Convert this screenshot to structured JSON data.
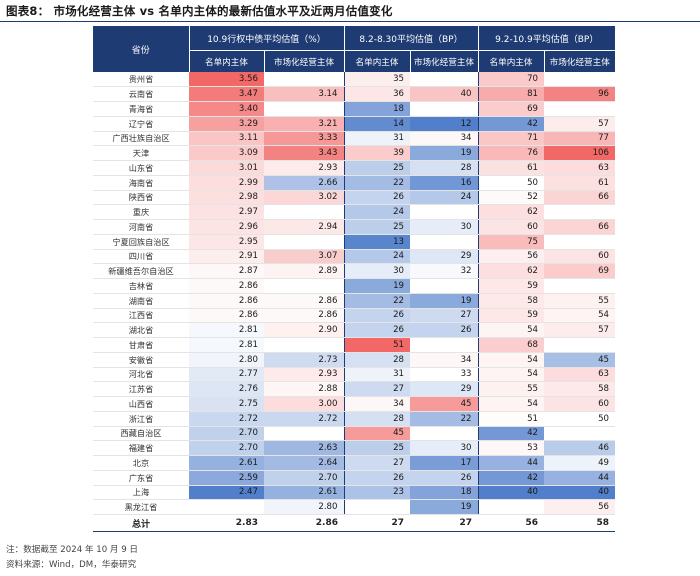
{
  "title": "图表8：  市场化经营主体 vs 名单内主体的最新估值水平及近两月估值变化",
  "headers": {
    "province": "省份",
    "group1": "10.9行权中债平均估值（%）",
    "group2": "8.2-8.30平均估值（BP）",
    "group3": "9.2-10.9平均估值（BP）",
    "sub_a": "名单内主体",
    "sub_b": "市场化经营主体"
  },
  "rows": [
    {
      "p": "贵州省",
      "y_in": "3.56",
      "y_mk": "",
      "a_in": "35",
      "a_mk": "",
      "b_in": "70",
      "b_mk": ""
    },
    {
      "p": "云南省",
      "y_in": "3.47",
      "y_mk": "3.14",
      "a_in": "36",
      "a_mk": "40",
      "b_in": "81",
      "b_mk": "96"
    },
    {
      "p": "青海省",
      "y_in": "3.40",
      "y_mk": "",
      "a_in": "18",
      "a_mk": "",
      "b_in": "69",
      "b_mk": ""
    },
    {
      "p": "辽宁省",
      "y_in": "3.29",
      "y_mk": "3.21",
      "a_in": "14",
      "a_mk": "12",
      "b_in": "42",
      "b_mk": "57"
    },
    {
      "p": "广西壮族自治区",
      "y_in": "3.11",
      "y_mk": "3.33",
      "a_in": "31",
      "a_mk": "34",
      "b_in": "71",
      "b_mk": "77"
    },
    {
      "p": "天津",
      "y_in": "3.09",
      "y_mk": "3.43",
      "a_in": "39",
      "a_mk": "19",
      "b_in": "76",
      "b_mk": "106"
    },
    {
      "p": "山东省",
      "y_in": "3.01",
      "y_mk": "2.93",
      "a_in": "25",
      "a_mk": "28",
      "b_in": "61",
      "b_mk": "63"
    },
    {
      "p": "海南省",
      "y_in": "2.99",
      "y_mk": "2.66",
      "a_in": "22",
      "a_mk": "16",
      "b_in": "50",
      "b_mk": "61"
    },
    {
      "p": "陕西省",
      "y_in": "2.98",
      "y_mk": "3.02",
      "a_in": "26",
      "a_mk": "24",
      "b_in": "52",
      "b_mk": "66"
    },
    {
      "p": "重庆",
      "y_in": "2.97",
      "y_mk": "",
      "a_in": "24",
      "a_mk": "",
      "b_in": "62",
      "b_mk": ""
    },
    {
      "p": "河南省",
      "y_in": "2.96",
      "y_mk": "2.94",
      "a_in": "25",
      "a_mk": "30",
      "b_in": "60",
      "b_mk": "66"
    },
    {
      "p": "宁夏回族自治区",
      "y_in": "2.95",
      "y_mk": "",
      "a_in": "13",
      "a_mk": "",
      "b_in": "75",
      "b_mk": ""
    },
    {
      "p": "四川省",
      "y_in": "2.91",
      "y_mk": "3.07",
      "a_in": "24",
      "a_mk": "29",
      "b_in": "56",
      "b_mk": "60"
    },
    {
      "p": "新疆维吾尔自治区",
      "y_in": "2.87",
      "y_mk": "2.89",
      "a_in": "30",
      "a_mk": "32",
      "b_in": "62",
      "b_mk": "69"
    },
    {
      "p": "吉林省",
      "y_in": "2.86",
      "y_mk": "",
      "a_in": "19",
      "a_mk": "",
      "b_in": "59",
      "b_mk": ""
    },
    {
      "p": "湖南省",
      "y_in": "2.86",
      "y_mk": "2.86",
      "a_in": "22",
      "a_mk": "19",
      "b_in": "58",
      "b_mk": "55"
    },
    {
      "p": "江西省",
      "y_in": "2.86",
      "y_mk": "2.86",
      "a_in": "26",
      "a_mk": "27",
      "b_in": "59",
      "b_mk": "54"
    },
    {
      "p": "湖北省",
      "y_in": "2.81",
      "y_mk": "2.90",
      "a_in": "26",
      "a_mk": "26",
      "b_in": "54",
      "b_mk": "57"
    },
    {
      "p": "甘肃省",
      "y_in": "2.81",
      "y_mk": "",
      "a_in": "51",
      "a_mk": "",
      "b_in": "68",
      "b_mk": ""
    },
    {
      "p": "安徽省",
      "y_in": "2.80",
      "y_mk": "2.73",
      "a_in": "28",
      "a_mk": "34",
      "b_in": "54",
      "b_mk": "45"
    },
    {
      "p": "河北省",
      "y_in": "2.77",
      "y_mk": "2.93",
      "a_in": "31",
      "a_mk": "33",
      "b_in": "54",
      "b_mk": "63"
    },
    {
      "p": "江苏省",
      "y_in": "2.76",
      "y_mk": "2.88",
      "a_in": "27",
      "a_mk": "29",
      "b_in": "55",
      "b_mk": "58"
    },
    {
      "p": "山西省",
      "y_in": "2.75",
      "y_mk": "3.00",
      "a_in": "34",
      "a_mk": "45",
      "b_in": "54",
      "b_mk": "60"
    },
    {
      "p": "浙江省",
      "y_in": "2.72",
      "y_mk": "2.72",
      "a_in": "28",
      "a_mk": "22",
      "b_in": "51",
      "b_mk": "50"
    },
    {
      "p": "西藏自治区",
      "y_in": "2.70",
      "y_mk": "",
      "a_in": "45",
      "a_mk": "",
      "b_in": "42",
      "b_mk": ""
    },
    {
      "p": "福建省",
      "y_in": "2.70",
      "y_mk": "2.63",
      "a_in": "25",
      "a_mk": "30",
      "b_in": "53",
      "b_mk": "46"
    },
    {
      "p": "北京",
      "y_in": "2.61",
      "y_mk": "2.64",
      "a_in": "27",
      "a_mk": "17",
      "b_in": "44",
      "b_mk": "49"
    },
    {
      "p": "广东省",
      "y_in": "2.59",
      "y_mk": "2.70",
      "a_in": "26",
      "a_mk": "26",
      "b_in": "42",
      "b_mk": "44"
    },
    {
      "p": "上海",
      "y_in": "2.47",
      "y_mk": "2.61",
      "a_in": "23",
      "a_mk": "18",
      "b_in": "40",
      "b_mk": "40"
    },
    {
      "p": "黑龙江省",
      "y_in": "",
      "y_mk": "2.80",
      "a_in": "",
      "a_mk": "19",
      "b_in": "",
      "b_mk": "56"
    }
  ],
  "total": {
    "p": "总计",
    "y_in": "2.83",
    "y_mk": "2.86",
    "a_in": "27",
    "a_mk": "27",
    "b_in": "56",
    "b_mk": "58"
  },
  "notes": {
    "note": "注：数据截至 2024 年 10 月 9 日",
    "source": "资料来源：Wind，DM，华泰研究"
  },
  "colors": {
    "header_bg": "#1f3b73",
    "red_hi": "#f0605f",
    "blue_lo": "#4878c8",
    "neutral": "#ffffff"
  }
}
